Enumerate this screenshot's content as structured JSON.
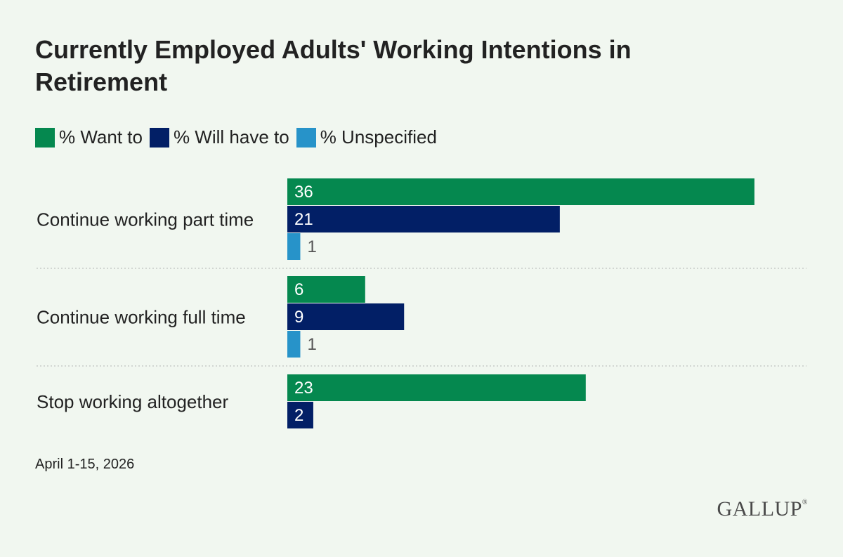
{
  "title": "Currently Employed Adults' Working Intentions in Retirement",
  "note": "April 1-15, 2026",
  "logo": "GALLUP",
  "logo_mark": "®",
  "colors": {
    "want": "#05884f",
    "have": "#021f66",
    "unspecified": "#2793c9",
    "divider": "#c8cbc8"
  },
  "legend": [
    {
      "label": "% Want to",
      "color": "#05884f"
    },
    {
      "label": "% Will have to",
      "color": "#021f66"
    },
    {
      "label": "% Unspecified",
      "color": "#2793c9"
    }
  ],
  "chart_data": {
    "type": "bar",
    "orientation": "horizontal",
    "title": "Currently Employed Adults' Working Intentions in Retirement",
    "categories": [
      "Continue working part time",
      "Continue working full time",
      "Stop working altogether"
    ],
    "series": [
      {
        "name": "% Want to",
        "color": "#05884f",
        "values": [
          36,
          6,
          23
        ]
      },
      {
        "name": "% Will have to",
        "color": "#021f66",
        "values": [
          21,
          9,
          2
        ]
      },
      {
        "name": "% Unspecified",
        "color": "#2793c9",
        "values": [
          1,
          1,
          null
        ]
      }
    ],
    "data_labels": true,
    "legend": "top-left",
    "grid": false
  }
}
